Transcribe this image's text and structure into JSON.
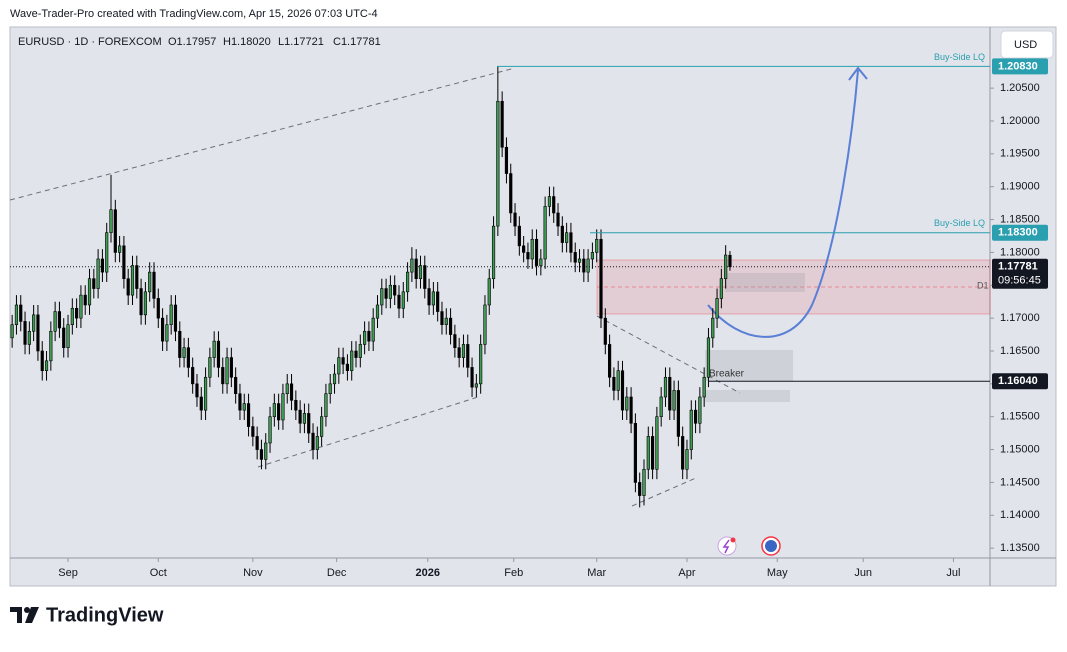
{
  "watermark": "Wave-Trader-Pro created with TradingView.com, Apr 15, 2026 07:03 UTC-4",
  "brand": "TradingView",
  "chart_data": {
    "type": "candlestick",
    "symbol": "EURUSD · 1D · FOREXCOM",
    "ohlc_header": [
      "O1.17957",
      "H1.18020",
      "L1.17721",
      "C1.17781"
    ],
    "currency": "USD",
    "up_color": "#3f9b54",
    "down_color": "#000000",
    "xlim": [
      -0.5,
      227.5
    ],
    "xticks": [
      {
        "value": 13,
        "label": "Sep"
      },
      {
        "value": 34,
        "label": "Oct"
      },
      {
        "value": 56,
        "label": "Nov"
      },
      {
        "value": 75.5,
        "label": "Dec"
      },
      {
        "value": 96.7,
        "label": "2026"
      },
      {
        "value": 116.7,
        "label": "Feb"
      },
      {
        "value": 136,
        "label": "Mar"
      },
      {
        "value": 157,
        "label": "Apr"
      },
      {
        "value": 178,
        "label": "May"
      },
      {
        "value": 198,
        "label": "Jun"
      },
      {
        "value": 219,
        "label": "Jul"
      }
    ],
    "ylim": [
      1.1335,
      1.2143
    ],
    "yticks": [
      {
        "value": 1.135,
        "label": "1.13500"
      },
      {
        "value": 1.14,
        "label": "1.14000"
      },
      {
        "value": 1.145,
        "label": "1.14500"
      },
      {
        "value": 1.15,
        "label": "1.15000"
      },
      {
        "value": 1.155,
        "label": "1.15500"
      },
      {
        "value": 1.16,
        "label": "1.16000"
      },
      {
        "value": 1.165,
        "label": "1.16500"
      },
      {
        "value": 1.17,
        "label": "1.17000"
      },
      {
        "value": 1.175,
        "label": "1.17500"
      },
      {
        "value": 1.18,
        "label": "1.18000"
      },
      {
        "value": 1.185,
        "label": "1.18500"
      },
      {
        "value": 1.19,
        "label": "1.19000"
      },
      {
        "value": 1.195,
        "label": "1.19500"
      },
      {
        "value": 1.2,
        "label": "1.20000"
      },
      {
        "value": 1.205,
        "label": "1.20500"
      }
    ],
    "levels": [
      {
        "value": 1.2083,
        "label": "1.20830",
        "note": "Buy-Side LQ",
        "color": "#2a9fb0"
      },
      {
        "value": 1.183,
        "label": "1.18300",
        "note": "Buy-Side LQ",
        "color": "#2a9fb0"
      },
      {
        "value": 1.1604,
        "label": "1.16040",
        "color": "#131722"
      }
    ],
    "last": {
      "value": 1.17781,
      "label": "1.17781",
      "countdown": "09:56:45"
    },
    "annotations": {
      "breaker": "Breaker",
      "zone": "D1"
    },
    "open": [
      1.167,
      1.169,
      1.172,
      1.1695,
      1.166,
      1.168,
      1.1705,
      1.165,
      1.162,
      1.1635,
      1.168,
      1.171,
      1.1685,
      1.1655,
      1.169,
      1.1715,
      1.17,
      1.1735,
      1.172,
      1.176,
      1.1745,
      1.179,
      1.177,
      1.183,
      1.1865,
      1.18,
      1.181,
      1.176,
      1.1735,
      1.178,
      1.1745,
      1.1705,
      1.174,
      1.177,
      1.173,
      1.17,
      1.1665,
      1.169,
      1.172,
      1.168,
      1.164,
      1.1655,
      1.1625,
      1.16,
      1.158,
      1.156,
      1.161,
      1.164,
      1.1665,
      1.1625,
      1.16,
      1.164,
      1.161,
      1.1585,
      1.156,
      1.157,
      1.1535,
      1.152,
      1.15,
      1.1485,
      1.151,
      1.155,
      1.157,
      1.1545,
      1.1585,
      1.16,
      1.1575,
      1.156,
      1.154,
      1.1555,
      1.1525,
      1.15,
      1.152,
      1.155,
      1.1585,
      1.16,
      1.1615,
      1.164,
      1.163,
      1.162,
      1.165,
      1.164,
      1.166,
      1.168,
      1.1665,
      1.17,
      1.172,
      1.1745,
      1.173,
      1.175,
      1.1735,
      1.1715,
      1.174,
      1.177,
      1.179,
      1.176,
      1.178,
      1.1745,
      1.172,
      1.174,
      1.171,
      1.169,
      1.17,
      1.1675,
      1.1655,
      1.164,
      1.166,
      1.1625,
      1.1595,
      1.16,
      1.166,
      1.172,
      1.176,
      1.184,
      1.203,
      1.196,
      1.192,
      1.186,
      1.184,
      1.181,
      1.18,
      1.179,
      1.182,
      1.178,
      1.179,
      1.187,
      1.1885,
      1.186,
      1.184,
      1.1815,
      1.183,
      1.18,
      1.1785,
      1.179,
      1.177,
      1.179,
      1.18,
      1.182,
      1.17,
      1.166,
      1.161,
      1.159,
      1.162,
      1.156,
      1.158,
      1.154,
      1.145,
      1.143,
      1.147,
      1.152,
      1.147,
      1.155,
      1.158,
      1.161,
      1.156,
      1.159,
      1.152,
      1.147,
      1.15,
      1.156,
      1.154,
      1.158,
      1.161,
      1.167,
      1.17,
      1.173,
      1.176,
      1.17957
    ],
    "high": [
      1.1705,
      1.1735,
      1.1735,
      1.171,
      1.1695,
      1.172,
      1.172,
      1.1665,
      1.165,
      1.1695,
      1.1725,
      1.1725,
      1.17,
      1.1705,
      1.173,
      1.173,
      1.175,
      1.175,
      1.1775,
      1.1775,
      1.1805,
      1.1805,
      1.1845,
      1.1918,
      1.188,
      1.1825,
      1.1825,
      1.1775,
      1.1795,
      1.1795,
      1.176,
      1.1755,
      1.1785,
      1.1785,
      1.1745,
      1.1715,
      1.1705,
      1.1735,
      1.1735,
      1.1695,
      1.167,
      1.167,
      1.164,
      1.1615,
      1.1595,
      1.1625,
      1.1655,
      1.168,
      1.168,
      1.164,
      1.1655,
      1.1655,
      1.1625,
      1.16,
      1.1585,
      1.1585,
      1.155,
      1.1535,
      1.1515,
      1.1525,
      1.1565,
      1.1585,
      1.1585,
      1.16,
      1.1615,
      1.1615,
      1.159,
      1.1575,
      1.157,
      1.157,
      1.154,
      1.1535,
      1.1565,
      1.16,
      1.1615,
      1.163,
      1.1655,
      1.1655,
      1.1645,
      1.1665,
      1.1665,
      1.1675,
      1.1695,
      1.1695,
      1.1715,
      1.1735,
      1.176,
      1.176,
      1.1765,
      1.1765,
      1.175,
      1.1755,
      1.1785,
      1.1808,
      1.1805,
      1.1795,
      1.1795,
      1.176,
      1.1755,
      1.1755,
      1.1725,
      1.1715,
      1.1715,
      1.169,
      1.167,
      1.1675,
      1.1675,
      1.164,
      1.1615,
      1.1675,
      1.1735,
      1.1775,
      1.1855,
      1.2083,
      1.2045,
      1.1975,
      1.1935,
      1.1875,
      1.1855,
      1.1825,
      1.1815,
      1.1835,
      1.1835,
      1.1805,
      1.1885,
      1.19,
      1.19,
      1.1875,
      1.1855,
      1.1845,
      1.1845,
      1.1815,
      1.1805,
      1.1805,
      1.1805,
      1.1815,
      1.1835,
      1.1835,
      1.1715,
      1.1675,
      1.1625,
      1.1635,
      1.1635,
      1.1595,
      1.1595,
      1.1555,
      1.1465,
      1.1485,
      1.1535,
      1.1535,
      1.1565,
      1.1595,
      1.1625,
      1.1625,
      1.1605,
      1.1605,
      1.1535,
      1.1515,
      1.1575,
      1.1575,
      1.1595,
      1.1625,
      1.1685,
      1.1715,
      1.1745,
      1.1775,
      1.1811,
      1.1802
    ],
    "low": [
      1.1655,
      1.1675,
      1.168,
      1.1645,
      1.1645,
      1.1665,
      1.1635,
      1.1605,
      1.1605,
      1.162,
      1.1665,
      1.167,
      1.164,
      1.164,
      1.1675,
      1.1685,
      1.1685,
      1.1705,
      1.1705,
      1.173,
      1.173,
      1.1755,
      1.1755,
      1.1815,
      1.1785,
      1.1785,
      1.1745,
      1.172,
      1.172,
      1.173,
      1.169,
      1.169,
      1.1725,
      1.1715,
      1.1685,
      1.165,
      1.165,
      1.1675,
      1.1665,
      1.1625,
      1.1625,
      1.161,
      1.1585,
      1.1565,
      1.1545,
      1.1545,
      1.1595,
      1.1625,
      1.161,
      1.1585,
      1.1585,
      1.1595,
      1.157,
      1.1545,
      1.1545,
      1.152,
      1.1505,
      1.1485,
      1.147,
      1.147,
      1.1495,
      1.1535,
      1.153,
      1.153,
      1.157,
      1.156,
      1.1545,
      1.1525,
      1.1525,
      1.151,
      1.1485,
      1.1485,
      1.1505,
      1.1535,
      1.157,
      1.1585,
      1.16,
      1.1615,
      1.1605,
      1.1605,
      1.1625,
      1.1625,
      1.1645,
      1.165,
      1.165,
      1.1685,
      1.1705,
      1.1715,
      1.1715,
      1.172,
      1.17,
      1.17,
      1.1725,
      1.1755,
      1.1745,
      1.1745,
      1.173,
      1.1705,
      1.1705,
      1.1695,
      1.1675,
      1.1675,
      1.166,
      1.164,
      1.1625,
      1.1625,
      1.161,
      1.158,
      1.158,
      1.1585,
      1.1645,
      1.1705,
      1.1745,
      1.1825,
      1.1945,
      1.1905,
      1.1845,
      1.1825,
      1.1795,
      1.1785,
      1.1775,
      1.1775,
      1.1765,
      1.1765,
      1.1775,
      1.1855,
      1.1845,
      1.1825,
      1.18,
      1.18,
      1.1785,
      1.177,
      1.177,
      1.1755,
      1.1755,
      1.1775,
      1.1785,
      1.1685,
      1.1645,
      1.1595,
      1.1575,
      1.1575,
      1.1545,
      1.1545,
      1.1525,
      1.1435,
      1.1412,
      1.1415,
      1.1455,
      1.1455,
      1.1455,
      1.1535,
      1.1565,
      1.1545,
      1.1545,
      1.1505,
      1.1455,
      1.1455,
      1.1485,
      1.1525,
      1.1525,
      1.1565,
      1.1595,
      1.1655,
      1.1685,
      1.1715,
      1.1745,
      1.17721
    ],
    "close": [
      1.169,
      1.172,
      1.1695,
      1.166,
      1.168,
      1.1705,
      1.165,
      1.162,
      1.1635,
      1.168,
      1.171,
      1.1685,
      1.1655,
      1.169,
      1.1715,
      1.17,
      1.1735,
      1.172,
      1.176,
      1.1745,
      1.179,
      1.177,
      1.183,
      1.1865,
      1.18,
      1.181,
      1.176,
      1.1735,
      1.178,
      1.1745,
      1.1705,
      1.174,
      1.177,
      1.173,
      1.17,
      1.1665,
      1.169,
      1.172,
      1.168,
      1.164,
      1.1655,
      1.1625,
      1.16,
      1.158,
      1.156,
      1.161,
      1.164,
      1.1665,
      1.1625,
      1.16,
      1.164,
      1.161,
      1.1585,
      1.156,
      1.157,
      1.1535,
      1.152,
      1.15,
      1.1485,
      1.151,
      1.155,
      1.157,
      1.1545,
      1.1585,
      1.16,
      1.1575,
      1.156,
      1.154,
      1.1555,
      1.1525,
      1.15,
      1.152,
      1.155,
      1.1585,
      1.16,
      1.1615,
      1.164,
      1.163,
      1.162,
      1.165,
      1.164,
      1.166,
      1.168,
      1.1665,
      1.17,
      1.172,
      1.1745,
      1.173,
      1.175,
      1.1735,
      1.1715,
      1.174,
      1.177,
      1.179,
      1.176,
      1.178,
      1.1745,
      1.172,
      1.174,
      1.171,
      1.169,
      1.17,
      1.1675,
      1.1655,
      1.164,
      1.166,
      1.1625,
      1.1595,
      1.16,
      1.166,
      1.172,
      1.176,
      1.184,
      1.203,
      1.196,
      1.192,
      1.186,
      1.184,
      1.181,
      1.18,
      1.179,
      1.182,
      1.178,
      1.179,
      1.187,
      1.1885,
      1.186,
      1.184,
      1.1815,
      1.183,
      1.18,
      1.1785,
      1.179,
      1.177,
      1.179,
      1.18,
      1.182,
      1.17,
      1.166,
      1.161,
      1.159,
      1.162,
      1.156,
      1.158,
      1.154,
      1.145,
      1.143,
      1.147,
      1.152,
      1.147,
      1.155,
      1.158,
      1.161,
      1.156,
      1.159,
      1.152,
      1.147,
      1.15,
      1.156,
      1.154,
      1.158,
      1.161,
      1.167,
      1.17,
      1.173,
      1.176,
      1.1796,
      1.17781
    ]
  }
}
